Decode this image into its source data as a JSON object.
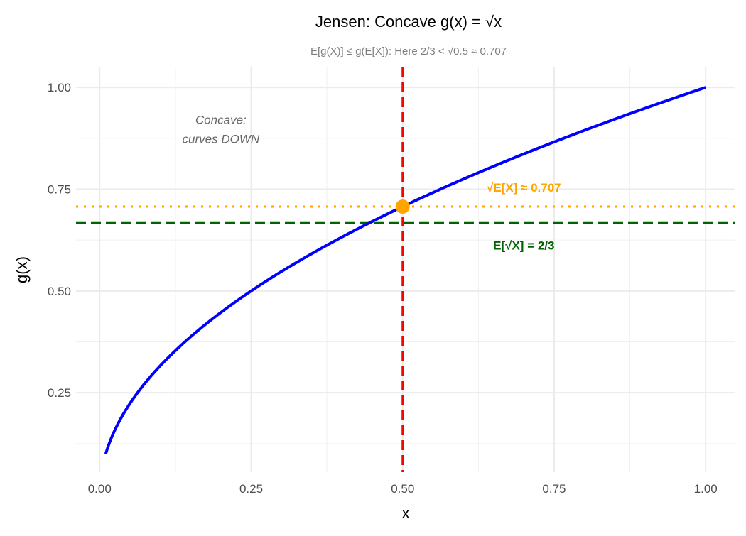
{
  "chart_data": {
    "type": "line",
    "title": "Jensen: Concave g(x) = √x",
    "subtitle": "E[g(X)] ≤ g(E[X]): Here 2/3 < √0.5 ≈ 0.707",
    "xlabel": "x",
    "ylabel": "g(x)",
    "xlim": [
      -0.039,
      1.049
    ],
    "ylim": [
      0.055,
      1.049
    ],
    "x_ticks": [
      0,
      0.25,
      0.5,
      0.75,
      1
    ],
    "x_tick_labels": [
      "0.00",
      "0.25",
      "0.50",
      "0.75",
      "1.00"
    ],
    "y_ticks": [
      0.25,
      0.5,
      0.75,
      1
    ],
    "y_tick_labels": [
      "0.25",
      "0.50",
      "0.75",
      "1.00"
    ],
    "grid": true,
    "series": [
      {
        "name": "g(x) = sqrt(x)",
        "function": "sqrt",
        "x_range": [
          0.01,
          1
        ],
        "color": "#0000FF"
      }
    ],
    "vline": {
      "x": 0.5,
      "color": "#FF0000",
      "style": "dashed"
    },
    "hlines": [
      {
        "y": 0.7071,
        "color": "#FFA500",
        "style": "dotted"
      },
      {
        "y": 0.6667,
        "color": "#006400",
        "style": "dashed"
      }
    ],
    "point": {
      "x": 0.5,
      "y": 0.7071,
      "color": "#FFA500"
    },
    "annotations": [
      {
        "lines": [
          "Concave:",
          "curves DOWN"
        ],
        "x": 0.2,
        "y": 0.9,
        "color": "#666666",
        "style": "italic"
      },
      {
        "text": "√E[X] ≈ 0.707",
        "x": 0.7,
        "y": 0.754,
        "color": "#FFA500",
        "style": "bold"
      },
      {
        "text": "E[√X] = 2/3",
        "x": 0.7,
        "y": 0.612,
        "color": "#006400",
        "style": "bold"
      }
    ]
  }
}
